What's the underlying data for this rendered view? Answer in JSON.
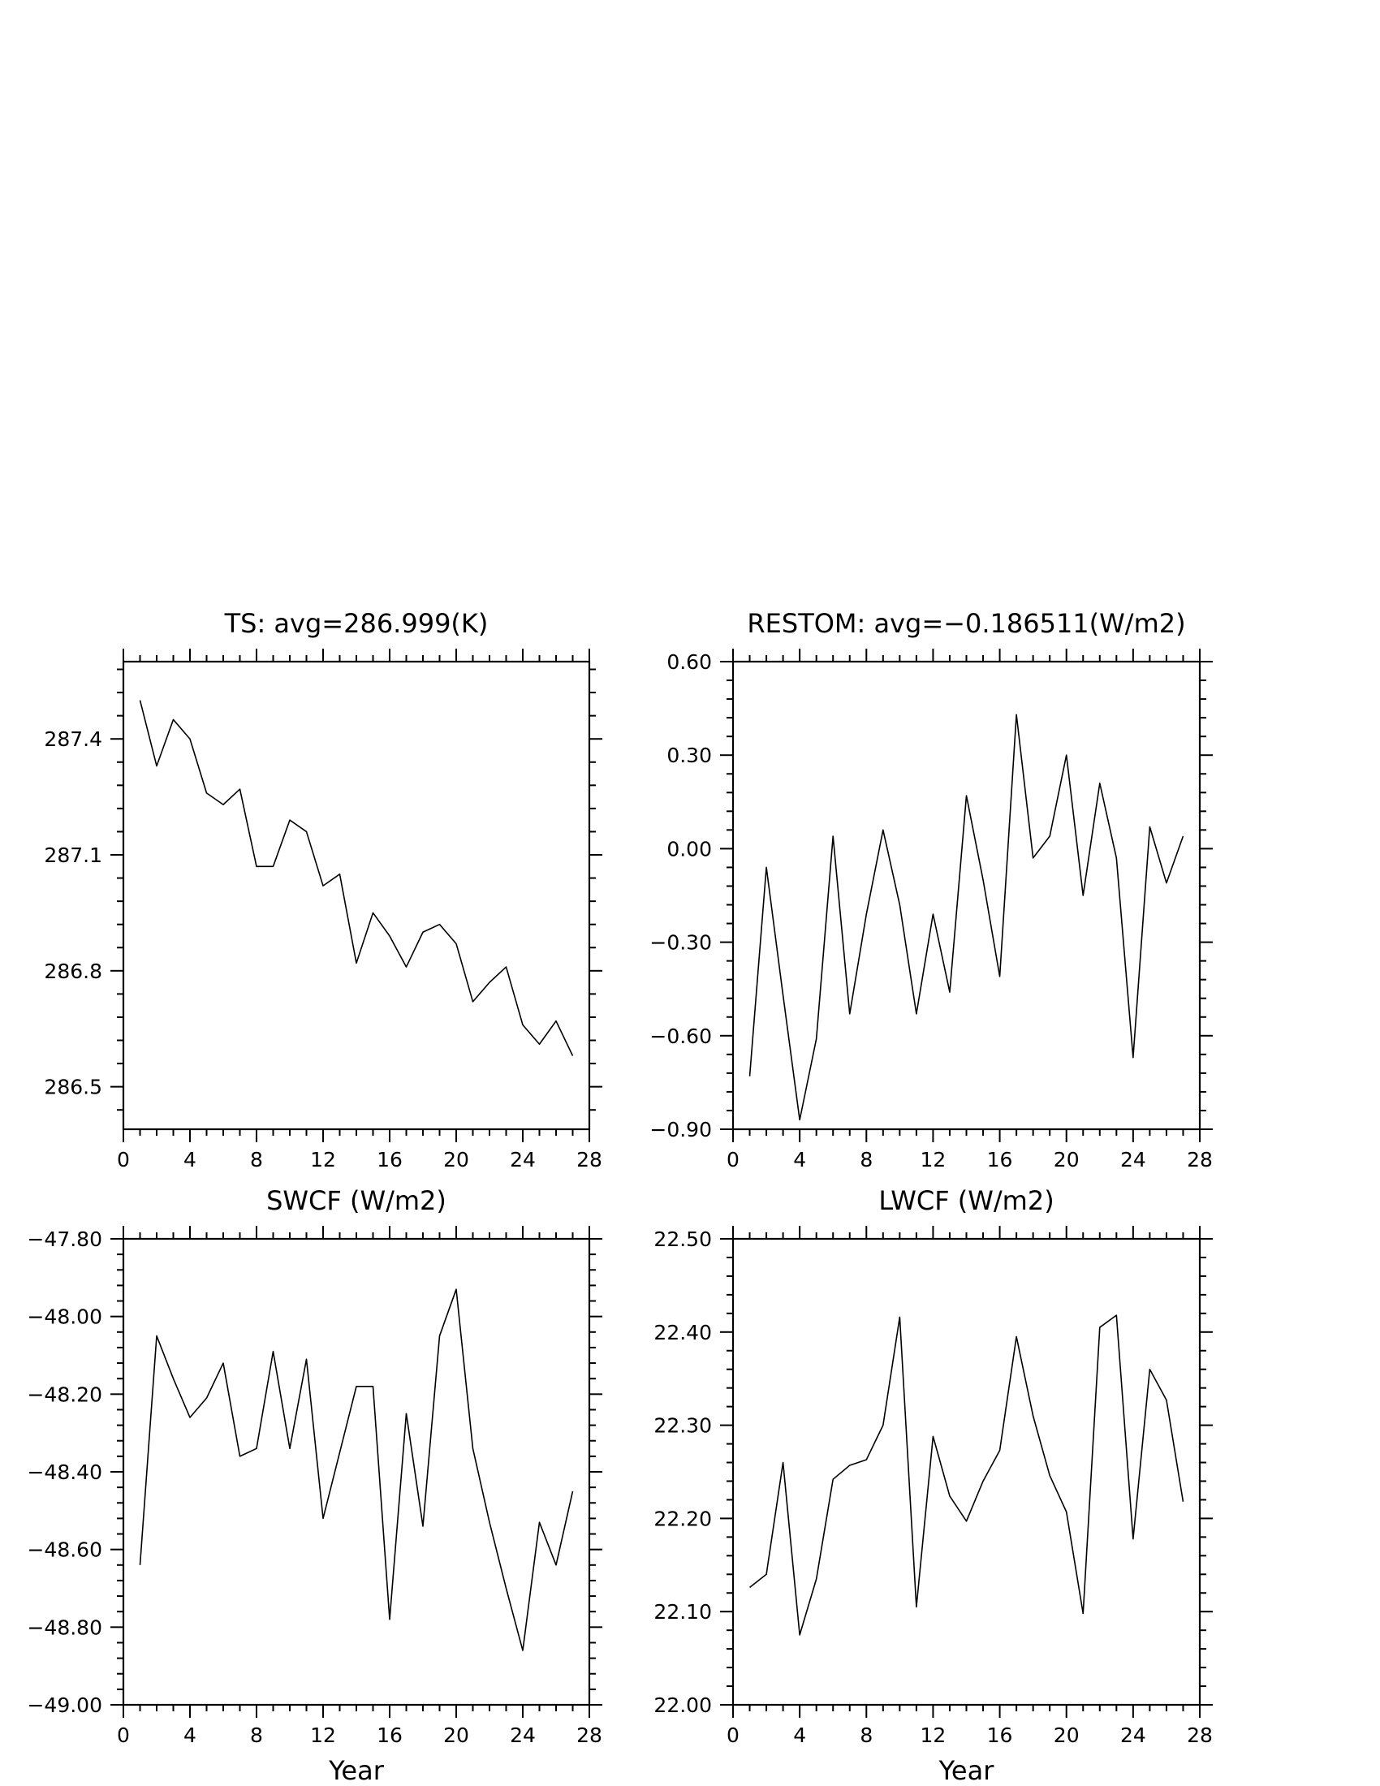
{
  "chart_data": [
    {
      "type": "line",
      "title": "TS: avg=286.999(K)",
      "xlabel": "",
      "ylabel": "",
      "x": [
        1,
        2,
        3,
        4,
        5,
        6,
        7,
        8,
        9,
        10,
        11,
        12,
        13,
        14,
        15,
        16,
        17,
        18,
        19,
        20,
        21,
        22,
        23,
        24,
        25,
        26,
        27
      ],
      "series": [
        {
          "values": [
            287.5,
            287.33,
            287.45,
            287.4,
            287.26,
            287.23,
            287.27,
            287.07,
            287.07,
            287.19,
            287.16,
            287.02,
            287.05,
            286.82,
            286.95,
            286.89,
            286.81,
            286.9,
            286.92,
            286.87,
            286.72,
            286.77,
            286.81,
            286.66,
            286.61,
            286.67,
            286.58
          ]
        }
      ],
      "xlim": [
        0,
        28
      ],
      "ylim": [
        286.39,
        287.6
      ],
      "xticks": [
        0,
        4,
        8,
        12,
        16,
        20,
        24,
        28
      ],
      "xtick_labels": [
        "0",
        "4",
        "8",
        "12",
        "16",
        "20",
        "24",
        "28"
      ],
      "yticks": [
        286.5,
        286.8,
        287.1,
        287.4
      ],
      "ytick_labels": [
        "286.5",
        "286.8",
        "287.1",
        "287.4"
      ],
      "grid": false
    },
    {
      "type": "line",
      "title": "RESTOM: avg=−0.186511(W/m2)",
      "xlabel": "",
      "ylabel": "",
      "x": [
        1,
        2,
        3,
        4,
        5,
        6,
        7,
        8,
        9,
        10,
        11,
        12,
        13,
        14,
        15,
        16,
        17,
        18,
        19,
        20,
        21,
        22,
        23,
        24,
        25,
        26,
        27
      ],
      "series": [
        {
          "values": [
            -0.73,
            -0.06,
            -0.47,
            -0.87,
            -0.61,
            0.04,
            -0.53,
            -0.21,
            0.06,
            -0.18,
            -0.53,
            -0.21,
            -0.46,
            0.17,
            -0.1,
            -0.41,
            0.43,
            -0.03,
            0.04,
            0.3,
            -0.15,
            0.21,
            -0.03,
            -0.67,
            0.07,
            -0.11,
            0.04
          ]
        }
      ],
      "xlim": [
        0,
        28
      ],
      "ylim": [
        -0.9,
        0.6
      ],
      "xticks": [
        0,
        4,
        8,
        12,
        16,
        20,
        24,
        28
      ],
      "xtick_labels": [
        "0",
        "4",
        "8",
        "12",
        "16",
        "20",
        "24",
        "28"
      ],
      "yticks": [
        -0.9,
        -0.6,
        -0.3,
        0,
        0.3,
        0.6
      ],
      "ytick_labels": [
        "−0.90",
        "−0.60",
        "−0.30",
        "0.00",
        "0.30",
        "0.60"
      ],
      "grid": false
    },
    {
      "type": "line",
      "title": "SWCF (W/m2)",
      "xlabel": "Year",
      "ylabel": "",
      "x": [
        1,
        2,
        3,
        4,
        5,
        6,
        7,
        8,
        9,
        10,
        11,
        12,
        13,
        14,
        15,
        16,
        17,
        18,
        19,
        20,
        21,
        22,
        23,
        24,
        25,
        26,
        27
      ],
      "series": [
        {
          "values": [
            -48.64,
            -48.05,
            -48.16,
            -48.26,
            -48.21,
            -48.12,
            -48.36,
            -48.34,
            -48.09,
            -48.34,
            -48.11,
            -48.52,
            -48.35,
            -48.18,
            -48.18,
            -48.78,
            -48.25,
            -48.54,
            -48.05,
            -47.93,
            -48.34,
            -48.53,
            -48.7,
            -48.86,
            -48.53,
            -48.64,
            -48.45
          ]
        }
      ],
      "xlim": [
        0,
        28
      ],
      "ylim": [
        -49.0,
        -47.8
      ],
      "xticks": [
        0,
        4,
        8,
        12,
        16,
        20,
        24,
        28
      ],
      "xtick_labels": [
        "0",
        "4",
        "8",
        "12",
        "16",
        "20",
        "24",
        "28"
      ],
      "yticks": [
        -49.0,
        -48.8,
        -48.6,
        -48.4,
        -48.2,
        -48.0,
        -47.8
      ],
      "ytick_labels": [
        "−49.00",
        "−48.80",
        "−48.60",
        "−48.40",
        "−48.20",
        "−48.00",
        "−47.80"
      ],
      "grid": false
    },
    {
      "type": "line",
      "title": "LWCF (W/m2)",
      "xlabel": "Year",
      "ylabel": "",
      "x": [
        1,
        2,
        3,
        4,
        5,
        6,
        7,
        8,
        9,
        10,
        11,
        12,
        13,
        14,
        15,
        16,
        17,
        18,
        19,
        20,
        21,
        22,
        23,
        24,
        25,
        26,
        27
      ],
      "series": [
        {
          "values": [
            22.126,
            22.14,
            22.26,
            22.075,
            22.135,
            22.242,
            22.257,
            22.263,
            22.3,
            22.416,
            22.105,
            22.288,
            22.224,
            22.197,
            22.24,
            22.273,
            22.395,
            22.31,
            22.246,
            22.207,
            22.098,
            22.405,
            22.418,
            22.178,
            22.36,
            22.327,
            22.218
          ]
        }
      ],
      "xlim": [
        0,
        28
      ],
      "ylim": [
        22.0,
        22.5
      ],
      "xticks": [
        0,
        4,
        8,
        12,
        16,
        20,
        24,
        28
      ],
      "xtick_labels": [
        "0",
        "4",
        "8",
        "12",
        "16",
        "20",
        "24",
        "28"
      ],
      "yticks": [
        22.0,
        22.1,
        22.2,
        22.3,
        22.4,
        22.5
      ],
      "ytick_labels": [
        "22.00",
        "22.10",
        "22.20",
        "22.30",
        "22.40",
        "22.50"
      ],
      "grid": false
    }
  ]
}
